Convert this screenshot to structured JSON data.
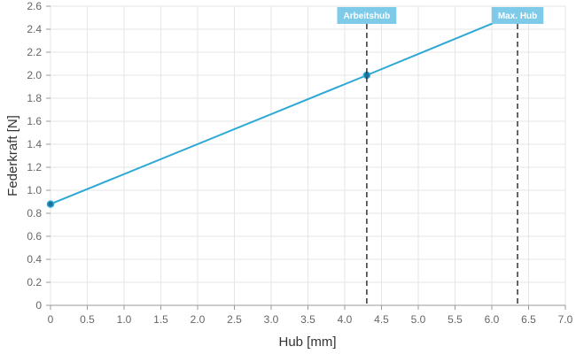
{
  "chart_data": {
    "type": "line",
    "xlabel": "Hub [mm]",
    "ylabel": "Federkraft [N]",
    "xlim": [
      0,
      7
    ],
    "ylim": [
      0,
      2.6
    ],
    "x_ticks": [
      "0",
      "0.5",
      "1.0",
      "1.5",
      "2.0",
      "2.5",
      "3.0",
      "3.5",
      "4.0",
      "4.5",
      "5.0",
      "5.5",
      "6.0",
      "6.5",
      "7.0"
    ],
    "y_ticks": [
      "0",
      "0.2",
      "0.4",
      "0.6",
      "0.8",
      "1.0",
      "1.2",
      "1.4",
      "1.6",
      "1.8",
      "2.0",
      "2.2",
      "2.4",
      "2.6"
    ],
    "grid": true,
    "legend": "none",
    "series": [
      {
        "color": "#2ea8d5",
        "points": [
          {
            "x": 0,
            "y": 0.88
          },
          {
            "x": 4.3,
            "y": 2.0
          },
          {
            "x": 6.35,
            "y": 2.54
          }
        ]
      }
    ],
    "markers": [
      {
        "x": 4.3,
        "label": "Arbeitshub"
      },
      {
        "x": 6.35,
        "label": "Max. Hub"
      }
    ],
    "colors": {
      "line": "#2ea8d5",
      "point": "#1b6f9a",
      "marker_label_bg": "#7ecae9",
      "marker_line": "#333333",
      "grid": "#e6e6e6"
    }
  }
}
